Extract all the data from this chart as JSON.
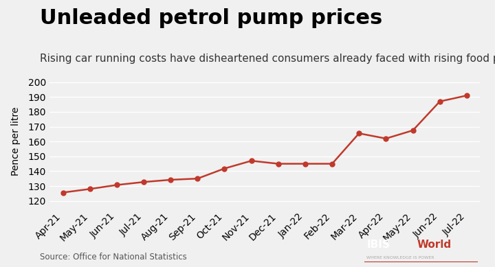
{
  "title": "Unleaded petrol pump prices",
  "subtitle": "Rising car running costs have disheartened consumers already faced with rising food prices.",
  "ylabel": "Pence per litre",
  "source": "Source: Office for National Statistics",
  "background_color": "#f0f0f0",
  "line_color": "#c0392b",
  "marker_color": "#c0392b",
  "x_labels": [
    "Apr-21",
    "May-21",
    "Jun-21",
    "Jul-21",
    "Aug-21",
    "Sep-21",
    "Oct-21",
    "Nov-21",
    "Dec-21",
    "Jan-22",
    "Feb-22",
    "Mar-22",
    "Apr-22",
    "May-22",
    "Jun-22",
    "Jul-22"
  ],
  "y_values": [
    125.6,
    128.0,
    130.7,
    132.7,
    134.2,
    135.0,
    141.8,
    147.0,
    145.0,
    145.0,
    145.0,
    165.5,
    162.0,
    167.5,
    187.0,
    191.0
  ],
  "ylim": [
    115,
    205
  ],
  "yticks": [
    120,
    130,
    140,
    150,
    160,
    170,
    180,
    190,
    200
  ],
  "title_fontsize": 22,
  "subtitle_fontsize": 11,
  "axis_fontsize": 10,
  "ylabel_fontsize": 10
}
